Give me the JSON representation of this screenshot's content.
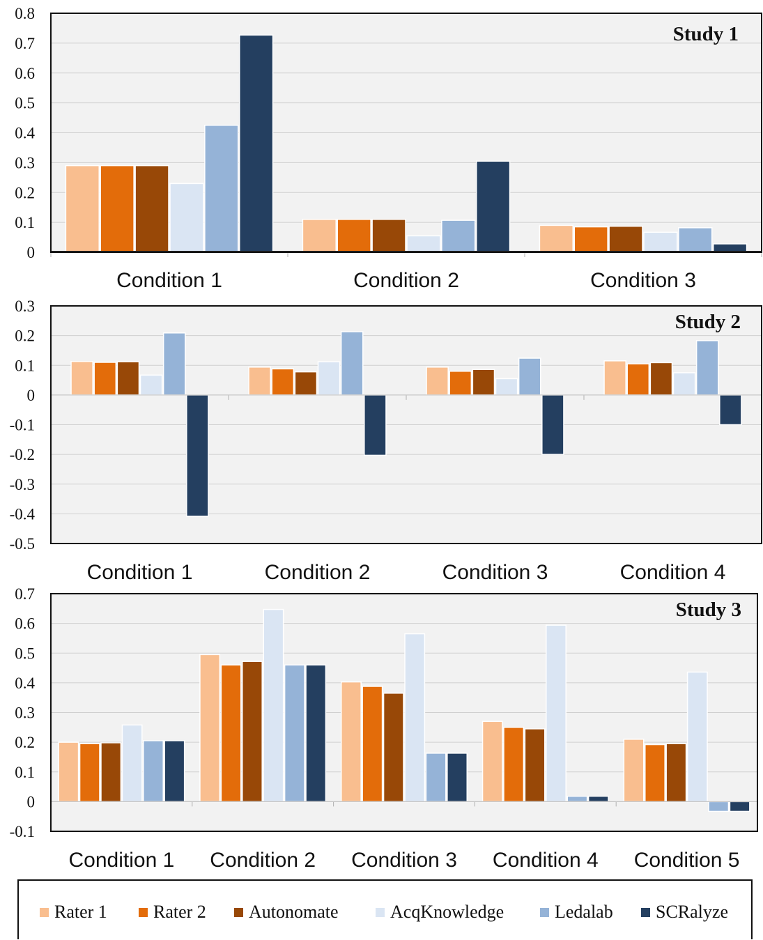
{
  "series_colors": {
    "Rater 1": "#F9BE8F",
    "Rater 2": "#E36C0A",
    "Autonomate": "#984807",
    "AcqKnowledge": "#DAE5F3",
    "Ledalab": "#95B3D7",
    "SCRalyze": "#243F60"
  },
  "chart_data": [
    {
      "type": "bar",
      "title": "Study 1",
      "categories": [
        "Condition 1",
        "Condition 2",
        "Condition 3"
      ],
      "ylim": [
        0,
        0.8
      ],
      "yticks": [
        0,
        0.1,
        0.2,
        0.3,
        0.4,
        0.5,
        0.6,
        0.7,
        0.8
      ],
      "ytick_labels": [
        "0",
        "0.1",
        "0.2",
        "0.3",
        "0.4",
        "0.5",
        "0.6",
        "0.7",
        "0.8"
      ],
      "grid": true,
      "series": [
        {
          "name": "Rater 1",
          "values": [
            0.29,
            0.11,
            0.09
          ]
        },
        {
          "name": "Rater 2",
          "values": [
            0.29,
            0.11,
            0.085
          ]
        },
        {
          "name": "Autonomate",
          "values": [
            0.29,
            0.11,
            0.087
          ]
        },
        {
          "name": "AcqKnowledge",
          "values": [
            0.23,
            0.055,
            0.067
          ]
        },
        {
          "name": "Ledalab",
          "values": [
            0.425,
            0.107,
            0.082
          ]
        },
        {
          "name": "SCRalyze",
          "values": [
            0.727,
            0.305,
            0.028
          ]
        }
      ]
    },
    {
      "type": "bar",
      "title": "Study 2",
      "categories": [
        "Condition 1",
        "Condition 2",
        "Condition 3",
        "Condition 4"
      ],
      "ylim": [
        -0.5,
        0.3
      ],
      "yticks": [
        -0.5,
        -0.4,
        -0.3,
        -0.2,
        -0.1,
        0,
        0.1,
        0.2,
        0.3
      ],
      "ytick_labels": [
        "-0.5",
        "-0.4",
        "-0.3",
        "-0.2",
        "-0.1",
        "0",
        "0.1",
        "0.2",
        "0.3"
      ],
      "grid": true,
      "series": [
        {
          "name": "Rater 1",
          "values": [
            0.113,
            0.094,
            0.094,
            0.115
          ]
        },
        {
          "name": "Rater 2",
          "values": [
            0.11,
            0.088,
            0.08,
            0.105
          ]
        },
        {
          "name": "Autonomate",
          "values": [
            0.112,
            0.078,
            0.086,
            0.109
          ]
        },
        {
          "name": "AcqKnowledge",
          "values": [
            0.067,
            0.112,
            0.055,
            0.075
          ]
        },
        {
          "name": "Ledalab",
          "values": [
            0.209,
            0.213,
            0.124,
            0.183
          ]
        },
        {
          "name": "SCRalyze",
          "values": [
            -0.408,
            -0.203,
            -0.2,
            -0.1
          ]
        }
      ]
    },
    {
      "type": "bar",
      "title": "Study 3",
      "categories": [
        "Condition 1",
        "Condition 2",
        "Condition 3",
        "Condition 4",
        "Condition 5"
      ],
      "ylim": [
        -0.1,
        0.7
      ],
      "yticks": [
        -0.1,
        0,
        0.1,
        0.2,
        0.3,
        0.4,
        0.5,
        0.6,
        0.7
      ],
      "ytick_labels": [
        "-0.1",
        "0",
        "0.1",
        "0.2",
        "0.3",
        "0.4",
        "0.5",
        "0.6",
        "0.7"
      ],
      "grid": true,
      "series": [
        {
          "name": "Rater 1",
          "values": [
            0.2,
            0.495,
            0.403,
            0.27,
            0.21
          ]
        },
        {
          "name": "Rater 2",
          "values": [
            0.195,
            0.46,
            0.388,
            0.25,
            0.192
          ]
        },
        {
          "name": "Autonomate",
          "values": [
            0.198,
            0.472,
            0.365,
            0.245,
            0.195
          ]
        },
        {
          "name": "AcqKnowledge",
          "values": [
            0.258,
            0.647,
            0.565,
            0.594,
            0.436
          ]
        },
        {
          "name": "Ledalab",
          "values": [
            0.205,
            0.46,
            0.163,
            0.018,
            -0.033
          ]
        },
        {
          "name": "SCRalyze",
          "values": [
            0.205,
            0.46,
            0.163,
            0.018,
            -0.033
          ]
        }
      ]
    }
  ],
  "legend": {
    "position": "bottom",
    "items": [
      {
        "label": "Rater 1",
        "color": "#F9BE8F"
      },
      {
        "label": "Rater 2",
        "color": "#E36C0A"
      },
      {
        "label": "Autonomate",
        "color": "#984807"
      },
      {
        "label": "AcqKnowledge",
        "color": "#DAE5F3"
      },
      {
        "label": "Ledalab",
        "color": "#95B3D7"
      },
      {
        "label": "SCRalyze",
        "color": "#243F60"
      }
    ]
  }
}
